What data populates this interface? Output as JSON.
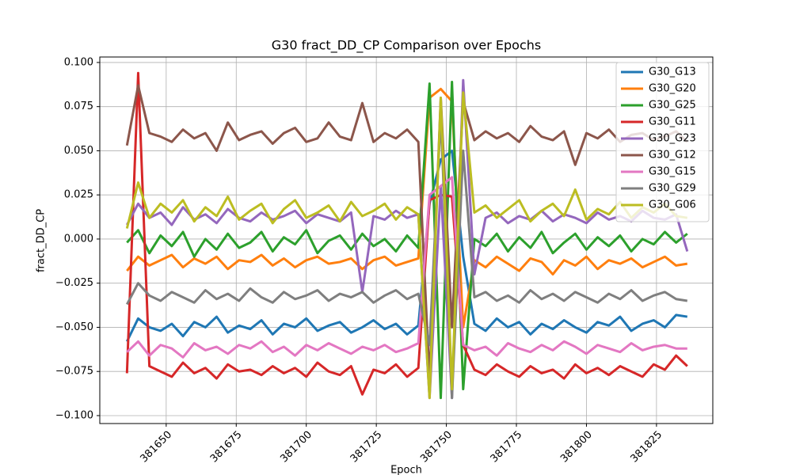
{
  "chart_data": {
    "type": "line",
    "title": "G30 fract_DD_CP Comparison over Epochs",
    "xlabel": "Epoch",
    "ylabel": "fract_DD_CP",
    "x": [
      381636,
      381640,
      381644,
      381648,
      381652,
      381656,
      381660,
      381664,
      381668,
      381672,
      381676,
      381680,
      381684,
      381688,
      381692,
      381696,
      381700,
      381704,
      381708,
      381712,
      381716,
      381720,
      381724,
      381728,
      381732,
      381736,
      381740,
      381744,
      381748,
      381752,
      381756,
      381760,
      381764,
      381768,
      381772,
      381776,
      381780,
      381784,
      381788,
      381792,
      381796,
      381800,
      381804,
      381808,
      381812,
      381816,
      381820,
      381824,
      381828,
      381832,
      381836
    ],
    "xlim": [
      381626.3,
      381845.1
    ],
    "xticks": [
      381650,
      381675,
      381700,
      381725,
      381750,
      381775,
      381800,
      381825
    ],
    "ylim": [
      -0.1045,
      0.1031
    ],
    "yticks": [
      {
        "value": -0.1,
        "label": "−0.100"
      },
      {
        "value": -0.075,
        "label": "−0.075"
      },
      {
        "value": -0.05,
        "label": "−0.050"
      },
      {
        "value": -0.025,
        "label": "−0.025"
      },
      {
        "value": 0,
        "label": "0.000"
      },
      {
        "value": 0.025,
        "label": "0.025"
      },
      {
        "value": 0.05,
        "label": "0.050"
      },
      {
        "value": 0.075,
        "label": "0.075"
      },
      {
        "value": 0.1,
        "label": "0.100"
      }
    ],
    "grid": true,
    "legend": "upper right",
    "series": [
      {
        "name": "G30_G13",
        "color": "#1f77b4",
        "values": [
          -0.058,
          -0.045,
          -0.05,
          -0.052,
          -0.048,
          -0.055,
          -0.047,
          -0.05,
          -0.044,
          -0.053,
          -0.049,
          -0.051,
          -0.046,
          -0.054,
          -0.048,
          -0.05,
          -0.045,
          -0.052,
          -0.049,
          -0.047,
          -0.053,
          -0.05,
          -0.046,
          -0.051,
          -0.048,
          -0.054,
          -0.049,
          0.02,
          0.045,
          0.05,
          -0.01,
          -0.048,
          -0.052,
          -0.045,
          -0.05,
          -0.047,
          -0.054,
          -0.048,
          -0.051,
          -0.046,
          -0.05,
          -0.053,
          -0.047,
          -0.049,
          -0.044,
          -0.052,
          -0.048,
          -0.046,
          -0.05,
          -0.043,
          -0.044
        ]
      },
      {
        "name": "G30_G20",
        "color": "#ff7f0e",
        "values": [
          -0.018,
          -0.01,
          -0.015,
          -0.012,
          -0.009,
          -0.016,
          -0.011,
          -0.014,
          -0.01,
          -0.017,
          -0.012,
          -0.013,
          -0.009,
          -0.015,
          -0.011,
          -0.016,
          -0.012,
          -0.01,
          -0.014,
          -0.013,
          -0.011,
          -0.017,
          -0.012,
          -0.01,
          -0.015,
          -0.013,
          -0.011,
          0.08,
          0.085,
          0.078,
          -0.05,
          -0.012,
          -0.016,
          -0.01,
          -0.014,
          -0.018,
          -0.011,
          -0.013,
          -0.02,
          -0.012,
          -0.015,
          -0.01,
          -0.017,
          -0.012,
          -0.014,
          -0.011,
          -0.016,
          -0.013,
          -0.01,
          -0.015,
          -0.014
        ]
      },
      {
        "name": "G30_G25",
        "color": "#2ca02c",
        "values": [
          -0.002,
          0.005,
          -0.008,
          0.002,
          -0.004,
          0.004,
          -0.01,
          0.0,
          -0.006,
          0.003,
          -0.005,
          -0.002,
          0.004,
          -0.007,
          0.001,
          -0.003,
          0.005,
          -0.008,
          -0.001,
          0.002,
          -0.006,
          0.003,
          -0.004,
          0.0,
          -0.007,
          0.002,
          -0.005,
          0.088,
          -0.09,
          0.089,
          -0.085,
          0.0,
          -0.004,
          0.003,
          -0.007,
          0.001,
          -0.005,
          0.004,
          -0.008,
          -0.002,
          0.003,
          -0.006,
          0.001,
          -0.004,
          0.002,
          -0.007,
          0.0,
          -0.003,
          0.004,
          -0.002,
          0.003
        ]
      },
      {
        "name": "G30_G11",
        "color": "#d62728",
        "values": [
          -0.076,
          0.094,
          -0.072,
          -0.075,
          -0.078,
          -0.07,
          -0.076,
          -0.073,
          -0.079,
          -0.071,
          -0.075,
          -0.074,
          -0.077,
          -0.072,
          -0.076,
          -0.073,
          -0.078,
          -0.07,
          -0.075,
          -0.077,
          -0.072,
          -0.088,
          -0.074,
          -0.076,
          -0.071,
          -0.078,
          -0.073,
          0.022,
          0.025,
          0.024,
          -0.06,
          -0.074,
          -0.077,
          -0.071,
          -0.075,
          -0.078,
          -0.072,
          -0.076,
          -0.074,
          -0.079,
          -0.071,
          -0.076,
          -0.073,
          -0.077,
          -0.072,
          -0.075,
          -0.078,
          -0.071,
          -0.074,
          -0.066,
          -0.072
        ]
      },
      {
        "name": "G30_G23",
        "color": "#9467bd",
        "values": [
          0.008,
          0.02,
          0.012,
          0.015,
          0.008,
          0.018,
          0.011,
          0.014,
          0.009,
          0.017,
          0.012,
          0.01,
          0.015,
          0.011,
          0.013,
          0.016,
          0.009,
          0.014,
          0.012,
          0.01,
          0.015,
          -0.03,
          0.013,
          0.011,
          0.016,
          0.012,
          0.014,
          -0.09,
          0.03,
          -0.09,
          0.09,
          -0.02,
          0.012,
          0.015,
          0.009,
          0.013,
          0.011,
          0.016,
          0.01,
          0.014,
          0.012,
          0.009,
          0.015,
          0.011,
          0.013,
          0.01,
          0.016,
          0.012,
          0.011,
          0.014,
          -0.007
        ]
      },
      {
        "name": "G30_G12",
        "color": "#8c564b",
        "values": [
          0.053,
          0.087,
          0.06,
          0.058,
          0.055,
          0.062,
          0.057,
          0.06,
          0.05,
          0.066,
          0.056,
          0.059,
          0.061,
          0.054,
          0.06,
          0.063,
          0.055,
          0.057,
          0.066,
          0.058,
          0.056,
          0.077,
          0.055,
          0.06,
          0.057,
          0.062,
          0.055,
          -0.08,
          0.08,
          -0.05,
          0.078,
          0.056,
          0.061,
          0.057,
          0.06,
          0.055,
          0.064,
          0.058,
          0.056,
          0.061,
          0.042,
          0.06,
          0.057,
          0.062,
          0.055,
          0.059,
          0.06,
          0.056,
          0.058,
          0.061,
          0.055
        ]
      },
      {
        "name": "G30_G15",
        "color": "#e377c2",
        "values": [
          -0.064,
          -0.058,
          -0.066,
          -0.06,
          -0.062,
          -0.067,
          -0.059,
          -0.063,
          -0.061,
          -0.065,
          -0.06,
          -0.062,
          -0.058,
          -0.064,
          -0.061,
          -0.066,
          -0.06,
          -0.063,
          -0.059,
          -0.062,
          -0.065,
          -0.061,
          -0.063,
          -0.06,
          -0.064,
          -0.062,
          -0.059,
          0.025,
          0.03,
          0.035,
          -0.06,
          -0.063,
          -0.061,
          -0.066,
          -0.059,
          -0.062,
          -0.064,
          -0.06,
          -0.063,
          -0.058,
          -0.061,
          -0.065,
          -0.06,
          -0.062,
          -0.064,
          -0.059,
          -0.063,
          -0.061,
          -0.06,
          -0.062,
          -0.062
        ]
      },
      {
        "name": "G30_G29",
        "color": "#7f7f7f",
        "values": [
          -0.037,
          -0.025,
          -0.032,
          -0.035,
          -0.03,
          -0.033,
          -0.036,
          -0.029,
          -0.034,
          -0.031,
          -0.035,
          -0.028,
          -0.033,
          -0.036,
          -0.03,
          -0.034,
          -0.032,
          -0.029,
          -0.035,
          -0.031,
          -0.033,
          -0.03,
          -0.036,
          -0.032,
          -0.029,
          -0.034,
          -0.031,
          -0.06,
          0.07,
          -0.09,
          0.05,
          -0.033,
          -0.03,
          -0.035,
          -0.032,
          -0.036,
          -0.029,
          -0.034,
          -0.031,
          -0.035,
          -0.03,
          -0.033,
          -0.036,
          -0.031,
          -0.034,
          -0.029,
          -0.035,
          -0.032,
          -0.03,
          -0.034,
          -0.035
        ]
      },
      {
        "name": "G30_G06",
        "color": "#bcbd22",
        "values": [
          0.006,
          0.032,
          0.012,
          0.02,
          0.015,
          0.022,
          0.01,
          0.018,
          0.013,
          0.024,
          0.011,
          0.016,
          0.02,
          0.009,
          0.017,
          0.022,
          0.012,
          0.015,
          0.019,
          0.01,
          0.021,
          0.013,
          0.016,
          0.02,
          0.011,
          0.018,
          0.014,
          -0.09,
          0.08,
          -0.085,
          0.083,
          0.015,
          0.019,
          0.012,
          0.017,
          0.022,
          0.01,
          0.016,
          0.02,
          0.013,
          0.028,
          0.011,
          0.017,
          0.014,
          0.021,
          0.012,
          0.018,
          0.015,
          0.02,
          0.013,
          0.012
        ]
      }
    ]
  }
}
